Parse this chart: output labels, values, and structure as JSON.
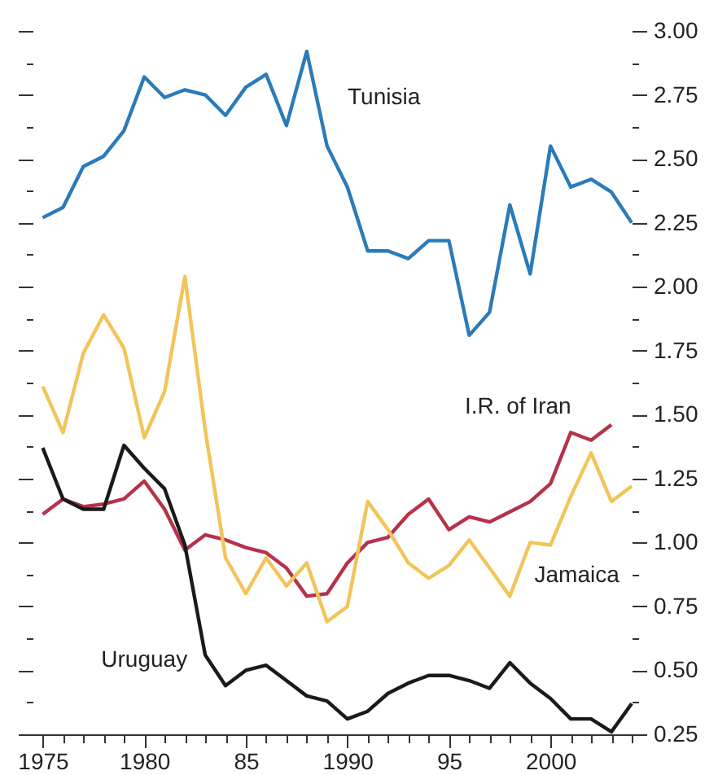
{
  "chart_data": {
    "type": "line",
    "x": [
      1975,
      1976,
      1977,
      1978,
      1979,
      1980,
      1981,
      1982,
      1983,
      1984,
      1985,
      1986,
      1987,
      1988,
      1989,
      1990,
      1991,
      1992,
      1993,
      1994,
      1995,
      1996,
      1997,
      1998,
      1999,
      2000,
      2001,
      2002,
      2003,
      2004
    ],
    "series": [
      {
        "name": "Tunisia",
        "color": "#2b7bb9",
        "values": [
          2.27,
          2.31,
          2.47,
          2.51,
          2.61,
          2.82,
          2.74,
          2.77,
          2.75,
          2.67,
          2.78,
          2.83,
          2.63,
          2.92,
          2.55,
          2.39,
          2.14,
          2.14,
          2.11,
          2.18,
          2.18,
          1.81,
          1.9,
          2.32,
          2.05,
          2.55,
          2.39,
          2.42,
          2.37,
          2.25
        ]
      },
      {
        "name": "I.R. of Iran",
        "color": "#b5334a",
        "values": [
          1.11,
          1.17,
          1.14,
          1.15,
          1.17,
          1.24,
          1.13,
          0.97,
          1.03,
          1.01,
          0.98,
          0.96,
          0.9,
          0.79,
          0.8,
          0.92,
          1.0,
          1.02,
          1.11,
          1.17,
          1.05,
          1.1,
          1.08,
          1.12,
          1.16,
          1.23,
          1.43,
          1.4,
          1.46,
          null
        ]
      },
      {
        "name": "Jamaica",
        "color": "#f2c45a",
        "values": [
          1.61,
          1.43,
          1.74,
          1.89,
          1.76,
          1.41,
          1.59,
          2.04,
          1.44,
          0.94,
          0.8,
          0.94,
          0.83,
          0.92,
          0.69,
          0.75,
          1.16,
          1.05,
          0.92,
          0.86,
          0.91,
          1.01,
          0.9,
          0.79,
          1.0,
          0.99,
          1.18,
          1.35,
          1.16,
          1.22
        ]
      },
      {
        "name": "Uruguay",
        "color": "#1a1a1a",
        "values": [
          1.37,
          1.17,
          1.13,
          1.13,
          1.38,
          1.29,
          1.21,
          0.99,
          0.56,
          0.44,
          0.5,
          0.52,
          0.46,
          0.4,
          0.38,
          0.31,
          0.34,
          0.41,
          0.45,
          0.48,
          0.48,
          0.46,
          0.43,
          0.53,
          0.45,
          0.39,
          0.31,
          0.31,
          0.26,
          0.37
        ]
      }
    ],
    "xlim": [
      1974.5,
      2004
    ],
    "xticks": [
      1975,
      {
        "value": 1976,
        "label": null
      },
      {
        "value": 1977,
        "label": null
      },
      {
        "value": 1978,
        "label": null
      },
      {
        "value": 1979,
        "label": null
      },
      1980,
      {
        "value": 1981,
        "label": null
      },
      {
        "value": 1982,
        "label": null
      },
      {
        "value": 1983,
        "label": null
      },
      {
        "value": 1984,
        "label": null
      },
      {
        "value": 1985,
        "label": "85"
      },
      {
        "value": 1986,
        "label": null
      },
      {
        "value": 1987,
        "label": null
      },
      {
        "value": 1988,
        "label": null
      },
      {
        "value": 1989,
        "label": null
      },
      1990,
      {
        "value": 1991,
        "label": null
      },
      {
        "value": 1992,
        "label": null
      },
      {
        "value": 1993,
        "label": null
      },
      {
        "value": 1994,
        "label": null
      },
      {
        "value": 1995,
        "label": "95"
      },
      {
        "value": 1996,
        "label": null
      },
      {
        "value": 1997,
        "label": null
      },
      {
        "value": 1998,
        "label": null
      },
      {
        "value": 1999,
        "label": null
      },
      2000,
      {
        "value": 2001,
        "label": null
      },
      {
        "value": 2002,
        "label": null
      },
      {
        "value": 2003,
        "label": null
      },
      {
        "value": 2004,
        "label": null
      }
    ],
    "ylim": [
      0.25,
      3.0
    ],
    "yticks": [
      {
        "value": 0.25,
        "label": "0.25"
      },
      {
        "value": 0.375,
        "label": null
      },
      {
        "value": 0.5,
        "label": "0.50"
      },
      {
        "value": 0.625,
        "label": null
      },
      {
        "value": 0.75,
        "label": "0.75"
      },
      {
        "value": 0.875,
        "label": null
      },
      {
        "value": 1.0,
        "label": "1.00"
      },
      {
        "value": 1.125,
        "label": null
      },
      {
        "value": 1.25,
        "label": "1.25"
      },
      {
        "value": 1.375,
        "label": null
      },
      {
        "value": 1.5,
        "label": "1.50"
      },
      {
        "value": 1.625,
        "label": null
      },
      {
        "value": 1.75,
        "label": "1.75"
      },
      {
        "value": 1.875,
        "label": null
      },
      {
        "value": 2.0,
        "label": "2.00"
      },
      {
        "value": 2.125,
        "label": null
      },
      {
        "value": 2.25,
        "label": "2.25"
      },
      {
        "value": 2.375,
        "label": null
      },
      {
        "value": 2.5,
        "label": "2.50"
      },
      {
        "value": 2.625,
        "label": null
      },
      {
        "value": 2.75,
        "label": "2.75"
      },
      {
        "value": 2.875,
        "label": null
      },
      {
        "value": 3.0,
        "label": "3.00"
      }
    ],
    "grid": false,
    "legend": false,
    "marker": "none",
    "line_style": "solid"
  }
}
